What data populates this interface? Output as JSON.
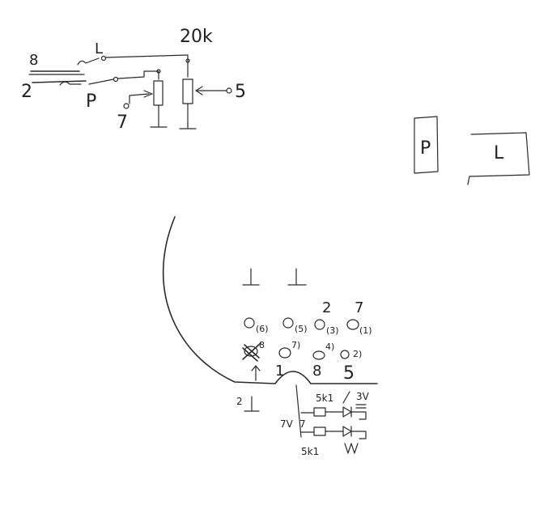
{
  "schematic": {
    "pin_8": "8",
    "pin_2": "2",
    "switch_L": "L",
    "switch_P": "P",
    "pot_value": "20k",
    "pin_7": "7",
    "pin_5": "5"
  },
  "boxes": {
    "p_box_label": "P",
    "l_box_label": "L"
  },
  "connector": {
    "ground_a": "⊥",
    "ground_b": "⊥",
    "top_num_2": "2",
    "top_num_7": "7",
    "hole_6": "(6)",
    "hole_5": "(5)",
    "hole_3": "(3)",
    "hole_1": "(1)",
    "hole_8_sup": "8",
    "hole_7_sup": "7)",
    "hole_4_sup": "4)",
    "hole_2_sup": "2)",
    "bottom_num_1": "1",
    "bottom_num_8": "8",
    "bottom_num_5": "5",
    "ground_c_num": "2",
    "ground_c": "⊥",
    "res_top": "5k1",
    "res_bottom": "5k1",
    "voltage_top": "3V",
    "voltage_left": "7V",
    "pin_7_left": "7"
  }
}
